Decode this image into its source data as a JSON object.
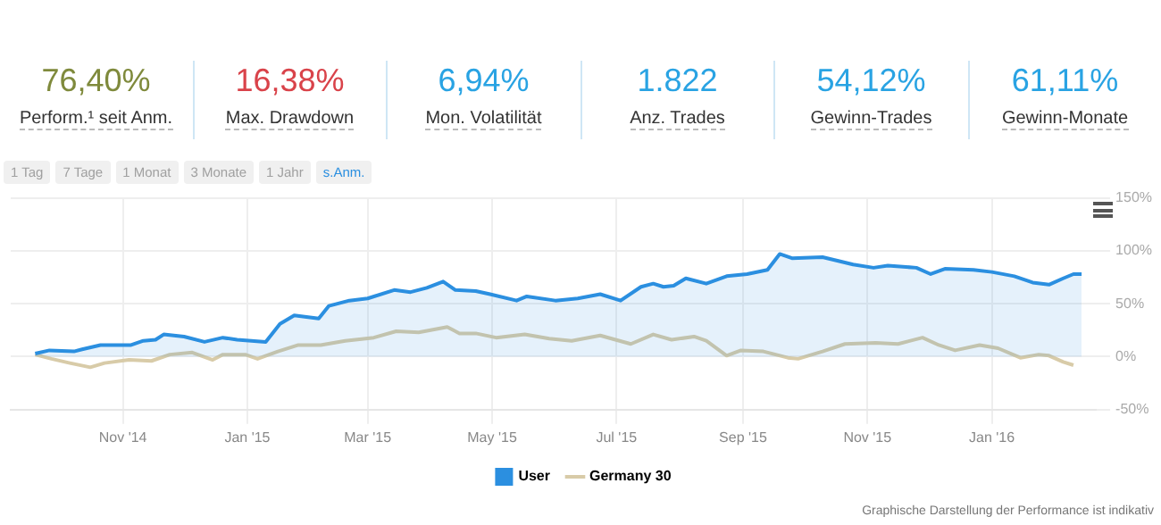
{
  "chart_data": [
    {
      "type": "other",
      "categories": [
        "Perform.¹ seit Anm.",
        "Max. Drawdown",
        "Mon. Volatilität",
        "Anz. Trades",
        "Gewinn-Trades",
        "Gewinn-Monate"
      ],
      "value_labels": [
        "76,40%",
        "16,38%",
        "6,94%",
        "1.822",
        "54,12%",
        "61,11%"
      ],
      "colors": [
        "#7f8a3c",
        "#d9434a",
        "#29a3e3",
        "#29a3e3",
        "#29a3e3",
        "#29a3e3"
      ]
    },
    {
      "type": "other",
      "annotations": [
        "1 Tag",
        "7 Tage",
        "1 Monat",
        "3 Monate",
        "1 Jahr",
        "s.Anm."
      ],
      "colors": [
        "#a0a0a0",
        "#a0a0a0",
        "#a0a0a0",
        "#a0a0a0",
        "#a0a0a0",
        "#2b8fe0"
      ]
    },
    {
      "type": "line",
      "xlim": [
        "2014-09-07",
        "2016-02-21"
      ],
      "xticks": [
        {
          "value": "2014-11-01",
          "label": "Nov '14"
        },
        {
          "value": "2015-01-01",
          "label": "Jan '15"
        },
        {
          "value": "2015-03-01",
          "label": "Mar '15"
        },
        {
          "value": "2015-05-01",
          "label": "May '15"
        },
        {
          "value": "2015-07-01",
          "label": "Jul '15"
        },
        {
          "value": "2015-09-01",
          "label": "Sep '15"
        },
        {
          "value": "2015-11-01",
          "label": "Nov '15"
        },
        {
          "value": "2016-01-01",
          "label": "Jan '16"
        }
      ],
      "ylim": [
        -50,
        150
      ],
      "yticks": [
        {
          "value": -50,
          "label": "-50%"
        },
        {
          "value": 0,
          "label": "0%"
        },
        {
          "value": 50,
          "label": "50%"
        },
        {
          "value": 100,
          "label": "100%"
        },
        {
          "value": 150,
          "label": "150%"
        }
      ],
      "grid": true,
      "legend": "bottom",
      "marker": "none",
      "annotations": [
        "Graphische Darstellung der Performance ist indikativ"
      ],
      "series": [
        {
          "name": "User",
          "type": "area",
          "color": "#2b8fe0",
          "x": [
            "2014-09-19",
            "2014-09-26",
            "2014-10-08",
            "2014-10-12",
            "2014-10-21",
            "2014-11-05",
            "2014-11-11",
            "2014-11-17",
            "2014-11-21",
            "2014-12-01",
            "2014-12-11",
            "2014-12-20",
            "2014-12-27",
            "2015-01-10",
            "2015-01-17",
            "2015-01-24",
            "2015-02-05",
            "2015-02-10",
            "2015-02-20",
            "2015-03-01",
            "2015-03-14",
            "2015-03-22",
            "2015-03-30",
            "2015-04-07",
            "2015-04-13",
            "2015-04-23",
            "2015-04-30",
            "2015-05-13",
            "2015-05-18",
            "2015-06-01",
            "2015-06-12",
            "2015-06-23",
            "2015-07-03",
            "2015-07-13",
            "2015-07-19",
            "2015-07-24",
            "2015-07-29",
            "2015-08-04",
            "2015-08-14",
            "2015-08-24",
            "2015-09-03",
            "2015-09-13",
            "2015-09-19",
            "2015-09-25",
            "2015-10-10",
            "2015-10-25",
            "2015-11-04",
            "2015-11-11",
            "2015-11-25",
            "2015-12-02",
            "2015-12-09",
            "2015-12-23",
            "2016-01-01",
            "2016-01-12",
            "2016-01-21",
            "2016-01-29",
            "2016-02-05",
            "2016-02-10",
            "2016-02-14"
          ],
          "values": [
            3,
            6,
            5,
            7,
            11,
            11,
            15,
            16,
            21,
            19,
            14,
            18,
            16,
            14,
            31,
            39,
            36,
            48,
            53,
            55,
            63,
            61,
            65,
            71,
            63,
            62,
            59,
            53,
            57,
            53,
            55,
            59,
            53,
            66,
            69,
            66,
            67,
            74,
            69,
            76,
            78,
            82,
            97,
            93,
            94,
            87,
            84,
            86,
            84,
            78,
            83,
            82,
            80,
            76,
            70,
            68,
            74,
            78,
            78
          ]
        },
        {
          "name": "Germany 30",
          "color": "#d8cba8",
          "x": [
            "2014-09-19",
            "2014-09-27",
            "2014-10-06",
            "2014-10-16",
            "2014-10-23",
            "2014-11-04",
            "2014-11-15",
            "2014-11-24",
            "2014-12-05",
            "2014-12-15",
            "2014-12-20",
            "2014-12-31",
            "2015-01-06",
            "2015-01-16",
            "2015-01-26",
            "2015-02-06",
            "2015-02-18",
            "2015-03-04",
            "2015-03-15",
            "2015-03-26",
            "2015-04-09",
            "2015-04-15",
            "2015-04-23",
            "2015-05-03",
            "2015-05-17",
            "2015-05-29",
            "2015-06-09",
            "2015-06-23",
            "2015-07-08",
            "2015-07-19",
            "2015-07-28",
            "2015-08-08",
            "2015-08-14",
            "2015-08-24",
            "2015-08-31",
            "2015-09-11",
            "2015-09-23",
            "2015-09-28",
            "2015-10-10",
            "2015-10-21",
            "2015-11-05",
            "2015-11-16",
            "2015-11-28",
            "2015-12-06",
            "2015-12-14",
            "2015-12-26",
            "2016-01-04",
            "2016-01-15",
            "2016-01-24",
            "2016-01-29",
            "2016-02-05",
            "2016-02-10"
          ],
          "values": [
            2,
            -2,
            -6,
            -10,
            -6,
            -3,
            -4,
            2,
            4,
            -3,
            2,
            2,
            -2,
            5,
            11,
            11,
            15,
            18,
            24,
            23,
            28,
            22,
            22,
            18,
            21,
            17,
            15,
            20,
            12,
            21,
            16,
            19,
            15,
            1,
            6,
            5,
            -1,
            -2,
            5,
            12,
            13,
            12,
            18,
            11,
            6,
            11,
            8,
            -1,
            2,
            1,
            -5,
            -8
          ]
        }
      ]
    }
  ]
}
